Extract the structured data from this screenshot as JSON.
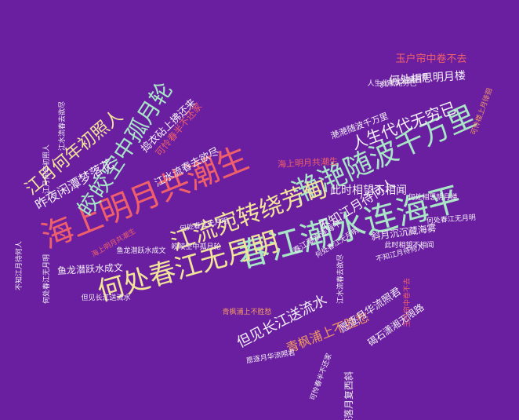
{
  "background": "#6a1fa1",
  "palette": {
    "mint": "#a8e6c6",
    "yellow": "#f2e59a",
    "coral": "#f0606a",
    "white": "#f4f1f6",
    "orange": "#f29a62",
    "lavender": "#d7c2ea"
  },
  "words": [
    {
      "text": "春江潮水连海平",
      "size": 42,
      "color": "#a8e6c6",
      "rot": -15
    },
    {
      "text": "海上明月共潮生",
      "size": 40,
      "color": "#f0606a",
      "rot": -22
    },
    {
      "text": "滟滟随波千万里",
      "size": 36,
      "color": "#a8e6c6",
      "rot": -24
    },
    {
      "text": "何处春江无月明",
      "size": 34,
      "color": "#f2e59a",
      "rot": -16
    },
    {
      "text": "江流宛转绕芳甸",
      "size": 30,
      "color": "#f2e59a",
      "rot": -20
    },
    {
      "text": "皎皎空中孤月轮",
      "size": 28,
      "color": "#a8e6c6",
      "rot": -57
    },
    {
      "text": "江月何年初照人",
      "size": 22,
      "color": "#f2e59a",
      "rot": -40
    },
    {
      "text": "人生代代无穷已",
      "size": 20,
      "color": "#f4f1f6",
      "rot": -20
    },
    {
      "text": "不知江月待何人",
      "size": 16,
      "color": "#f4f1f6",
      "rot": -32
    },
    {
      "text": "但见长江送流水",
      "size": 18,
      "color": "#f4f1f6",
      "rot": -27
    },
    {
      "text": "青枫浦上不胜愁",
      "size": 16,
      "color": "#f29a62",
      "rot": -22
    },
    {
      "text": "昨夜闲潭梦落花",
      "size": 16,
      "color": "#f4f1f6",
      "rot": -30
    },
    {
      "text": "此时相望不相闻",
      "size": 14,
      "color": "#f4f1f6",
      "rot": 0
    },
    {
      "text": "何处相思明月楼",
      "size": 14,
      "color": "#f4f1f6",
      "rot": -4
    },
    {
      "text": "玉户帘中卷不去",
      "size": 13,
      "color": "#f0606a",
      "rot": 0
    },
    {
      "text": "江水流春去欲尽",
      "size": 13,
      "color": "#f4f1f6",
      "rot": -28
    },
    {
      "text": "捣衣砧上拂还来",
      "size": 13,
      "color": "#f4f1f6",
      "rot": -44
    },
    {
      "text": "可怜春半不还家",
      "size": 12,
      "color": "#f0606a",
      "rot": -50
    },
    {
      "text": "斜月沉沉藏海雾",
      "size": 12,
      "color": "#f4f1f6",
      "rot": -8
    },
    {
      "text": "鱼龙潜跃水成文",
      "size": 12,
      "color": "#f4f1f6",
      "rot": -3
    },
    {
      "text": "春江潮水连海平",
      "size": 10,
      "color": "#f4f1f6",
      "rot": -32
    },
    {
      "text": "愿逐月华流照君",
      "size": 13,
      "color": "#f4f1f6",
      "rot": -34
    },
    {
      "text": "碣石潇湘无限路",
      "size": 12,
      "color": "#f4f1f6",
      "rot": -35
    },
    {
      "text": "江潭落月复西斜",
      "size": 12,
      "color": "#f4f1f6",
      "rot": -90
    },
    {
      "text": "滟滟随波千万里",
      "size": 11,
      "color": "#f4f1f6",
      "rot": -20
    },
    {
      "text": "海上明月共潮生",
      "size": 11,
      "color": "#f0606a",
      "rot": -3
    },
    {
      "text": "何处春江无月明",
      "size": 9,
      "color": "#f4f1f6",
      "rot": -32
    },
    {
      "text": "何处相思明月楼",
      "size": 9,
      "color": "#f4f1f6",
      "rot": 0
    },
    {
      "text": "此时相望不相闻",
      "size": 9,
      "color": "#f4f1f6",
      "rot": 0
    },
    {
      "text": "何处春江无月明",
      "size": 9,
      "color": "#f4f1f6",
      "rot": -4
    },
    {
      "text": "不知江月待何人",
      "size": 9,
      "color": "#f4f1f6",
      "rot": -15
    },
    {
      "text": "可怜楼上月徘徊",
      "size": 9,
      "color": "#f29a62",
      "rot": -70
    },
    {
      "text": "人生代代无穷已",
      "size": 9,
      "color": "#f4f1f6",
      "rot": 0
    },
    {
      "text": "斜月沉沉藏海雾",
      "size": 9,
      "color": "#f4f1f6",
      "rot": -10
    },
    {
      "text": "青枫浦上不胜愁",
      "size": 9,
      "color": "#f29a62",
      "rot": 0
    },
    {
      "text": "鱼龙潜跃水成文",
      "size": 9,
      "color": "#f4f1f6",
      "rot": 0
    },
    {
      "text": "何处春江无月明",
      "size": 9,
      "color": "#f4f1f6",
      "rot": -10
    },
    {
      "text": "江水流春去欲尽",
      "size": 9,
      "color": "#f4f1f6",
      "rot": -90
    },
    {
      "text": "江月何年初照人",
      "size": 9,
      "color": "#f4f1f6",
      "rot": -90
    },
    {
      "text": "何处春江无月明",
      "size": 9,
      "color": "#f4f1f6",
      "rot": -90
    },
    {
      "text": "玉户帘中卷不去",
      "size": 9,
      "color": "#f0606a",
      "rot": -90
    },
    {
      "text": "江水流春去欲尽",
      "size": 9,
      "color": "#f4f1f6",
      "rot": -90
    },
    {
      "text": "愿逐月华流照君",
      "size": 9,
      "color": "#f4f1f6",
      "rot": -10
    },
    {
      "text": "不知江月待何人",
      "size": 9,
      "color": "#f4f1f6",
      "rot": -90
    },
    {
      "text": "可怜春半不还家",
      "size": 9,
      "color": "#f4f1f6",
      "rot": -70
    },
    {
      "text": "但见长江送流水",
      "size": 9,
      "color": "#f4f1f6",
      "rot": 0
    },
    {
      "text": "海上明月共潮生",
      "size": 9,
      "color": "#f0606a",
      "rot": -30
    },
    {
      "text": "皎皎空中孤月轮",
      "size": 9,
      "color": "#f4f1f6",
      "rot": 0
    }
  ]
}
